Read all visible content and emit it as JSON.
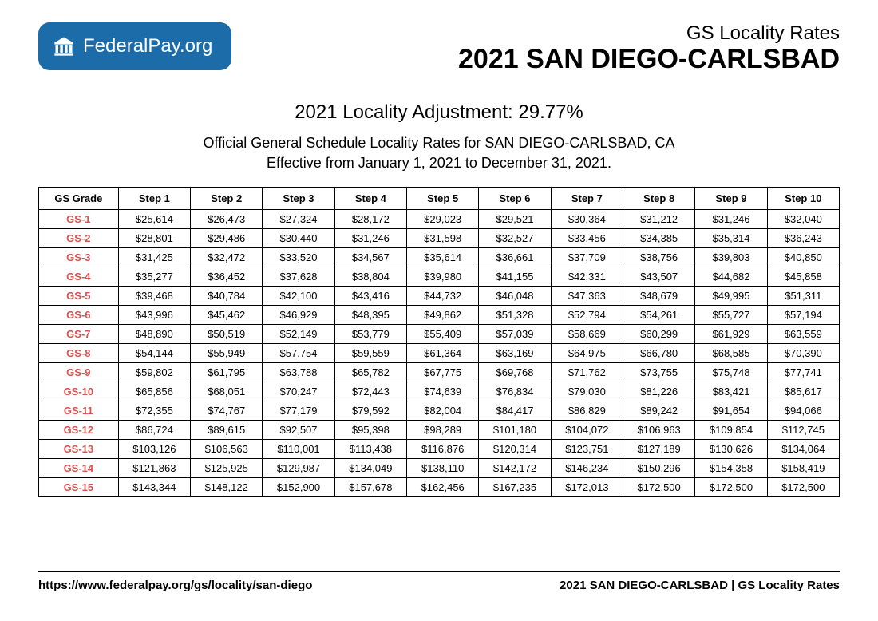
{
  "logo": {
    "brand_left": "Federal",
    "brand_right": "Pay.org",
    "badge_bg": "#1b6ca8",
    "icon_color": "#ffffff"
  },
  "header": {
    "subtitle": "GS Locality Rates",
    "title": "2021 SAN DIEGO-CARLSBAD"
  },
  "adjustment_line": "2021 Locality Adjustment: 29.77%",
  "description_line1": "Official General Schedule Locality Rates for SAN DIEGO-CARLSBAD, CA",
  "description_line2": "Effective from January 1, 2021 to December 31, 2021.",
  "table": {
    "grade_header": "GS Grade",
    "step_headers": [
      "Step 1",
      "Step 2",
      "Step 3",
      "Step 4",
      "Step 5",
      "Step 6",
      "Step 7",
      "Step 8",
      "Step 9",
      "Step 10"
    ],
    "grade_color": "#d9534f",
    "border_color": "#000000",
    "rows": [
      {
        "grade": "GS-1",
        "cells": [
          "$25,614",
          "$26,473",
          "$27,324",
          "$28,172",
          "$29,023",
          "$29,521",
          "$30,364",
          "$31,212",
          "$31,246",
          "$32,040"
        ]
      },
      {
        "grade": "GS-2",
        "cells": [
          "$28,801",
          "$29,486",
          "$30,440",
          "$31,246",
          "$31,598",
          "$32,527",
          "$33,456",
          "$34,385",
          "$35,314",
          "$36,243"
        ]
      },
      {
        "grade": "GS-3",
        "cells": [
          "$31,425",
          "$32,472",
          "$33,520",
          "$34,567",
          "$35,614",
          "$36,661",
          "$37,709",
          "$38,756",
          "$39,803",
          "$40,850"
        ]
      },
      {
        "grade": "GS-4",
        "cells": [
          "$35,277",
          "$36,452",
          "$37,628",
          "$38,804",
          "$39,980",
          "$41,155",
          "$42,331",
          "$43,507",
          "$44,682",
          "$45,858"
        ]
      },
      {
        "grade": "GS-5",
        "cells": [
          "$39,468",
          "$40,784",
          "$42,100",
          "$43,416",
          "$44,732",
          "$46,048",
          "$47,363",
          "$48,679",
          "$49,995",
          "$51,311"
        ]
      },
      {
        "grade": "GS-6",
        "cells": [
          "$43,996",
          "$45,462",
          "$46,929",
          "$48,395",
          "$49,862",
          "$51,328",
          "$52,794",
          "$54,261",
          "$55,727",
          "$57,194"
        ]
      },
      {
        "grade": "GS-7",
        "cells": [
          "$48,890",
          "$50,519",
          "$52,149",
          "$53,779",
          "$55,409",
          "$57,039",
          "$58,669",
          "$60,299",
          "$61,929",
          "$63,559"
        ]
      },
      {
        "grade": "GS-8",
        "cells": [
          "$54,144",
          "$55,949",
          "$57,754",
          "$59,559",
          "$61,364",
          "$63,169",
          "$64,975",
          "$66,780",
          "$68,585",
          "$70,390"
        ]
      },
      {
        "grade": "GS-9",
        "cells": [
          "$59,802",
          "$61,795",
          "$63,788",
          "$65,782",
          "$67,775",
          "$69,768",
          "$71,762",
          "$73,755",
          "$75,748",
          "$77,741"
        ]
      },
      {
        "grade": "GS-10",
        "cells": [
          "$65,856",
          "$68,051",
          "$70,247",
          "$72,443",
          "$74,639",
          "$76,834",
          "$79,030",
          "$81,226",
          "$83,421",
          "$85,617"
        ]
      },
      {
        "grade": "GS-11",
        "cells": [
          "$72,355",
          "$74,767",
          "$77,179",
          "$79,592",
          "$82,004",
          "$84,417",
          "$86,829",
          "$89,242",
          "$91,654",
          "$94,066"
        ]
      },
      {
        "grade": "GS-12",
        "cells": [
          "$86,724",
          "$89,615",
          "$92,507",
          "$95,398",
          "$98,289",
          "$101,180",
          "$104,072",
          "$106,963",
          "$109,854",
          "$112,745"
        ]
      },
      {
        "grade": "GS-13",
        "cells": [
          "$103,126",
          "$106,563",
          "$110,001",
          "$113,438",
          "$116,876",
          "$120,314",
          "$123,751",
          "$127,189",
          "$130,626",
          "$134,064"
        ]
      },
      {
        "grade": "GS-14",
        "cells": [
          "$121,863",
          "$125,925",
          "$129,987",
          "$134,049",
          "$138,110",
          "$142,172",
          "$146,234",
          "$150,296",
          "$154,358",
          "$158,419"
        ]
      },
      {
        "grade": "GS-15",
        "cells": [
          "$143,344",
          "$148,122",
          "$152,900",
          "$157,678",
          "$162,456",
          "$167,235",
          "$172,013",
          "$172,500",
          "$172,500",
          "$172,500"
        ]
      }
    ]
  },
  "footer": {
    "url": "https://www.federalpay.org/gs/locality/san-diego",
    "right": "2021 SAN DIEGO-CARLSBAD | GS Locality Rates"
  }
}
